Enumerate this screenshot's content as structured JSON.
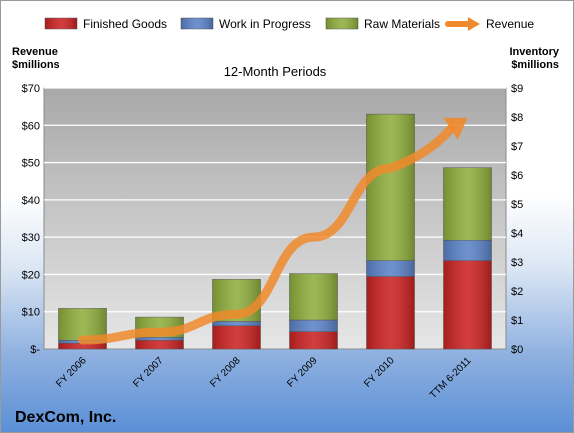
{
  "company": "DexCom, Inc.",
  "chart_data": {
    "type": "bar",
    "stacked": true,
    "title": "12-Month Periods",
    "ylabel_left": [
      "Revenue",
      "$millions"
    ],
    "ylabel_right": [
      "Inventory",
      "$millions"
    ],
    "categories": [
      "FY 2006",
      "FY 2007",
      "FY 2008",
      "FY 2009",
      "FY 2010",
      "TTM 6-2011"
    ],
    "series": [
      {
        "name": "Finished Goods",
        "color": "#cc2222",
        "values": [
          0.2,
          0.3,
          0.8,
          0.6,
          2.5,
          3.05
        ]
      },
      {
        "name": "Work in Progress",
        "color": "#5b83c8",
        "values": [
          0.1,
          0.1,
          0.15,
          0.4,
          0.55,
          0.7
        ]
      },
      {
        "name": "Raw Materials",
        "color": "#8fae3d",
        "values": [
          1.1,
          0.7,
          1.45,
          1.6,
          5.05,
          2.5
        ]
      }
    ],
    "line_series": {
      "name": "Revenue",
      "color": "#f08a2c",
      "values": [
        2.4,
        4.5,
        9.3,
        30,
        48.5,
        62
      ]
    },
    "y_left": {
      "min": 0,
      "max": 70,
      "ticks": [
        "$-",
        "$10",
        "$20",
        "$30",
        "$40",
        "$50",
        "$60",
        "$70"
      ]
    },
    "y_right": {
      "min": 0,
      "max": 9,
      "ticks": [
        "$0",
        "$1",
        "$2",
        "$3",
        "$4",
        "$5",
        "$6",
        "$7",
        "$8",
        "$9"
      ]
    },
    "grid": true,
    "legend": "top"
  }
}
